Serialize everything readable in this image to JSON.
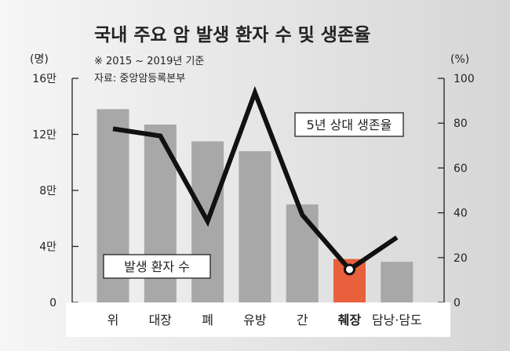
{
  "chart_data": {
    "type": "bar",
    "title": "국내 주요 암 발생 환자 수 및 생존율",
    "subtitle_period": "※ 2015 ~ 2019년 기준",
    "subtitle_source": "자료: 중앙암등록본부",
    "left_axis": {
      "unit": "(명)",
      "ylim": [
        0,
        160000
      ],
      "ticks": [
        {
          "value": 0,
          "label": "0"
        },
        {
          "value": 40000,
          "label": "4만"
        },
        {
          "value": 80000,
          "label": "8만"
        },
        {
          "value": 120000,
          "label": "12만"
        },
        {
          "value": 160000,
          "label": "16만"
        }
      ]
    },
    "right_axis": {
      "unit": "(%)",
      "ylim": [
        0,
        100
      ],
      "ticks": [
        {
          "value": 0,
          "label": "0"
        },
        {
          "value": 20,
          "label": "20"
        },
        {
          "value": 40,
          "label": "40"
        },
        {
          "value": 60,
          "label": "60"
        },
        {
          "value": 80,
          "label": "80"
        },
        {
          "value": 100,
          "label": "100"
        }
      ]
    },
    "categories": [
      "위",
      "대장",
      "폐",
      "유방",
      "간",
      "췌장",
      "담낭·담도"
    ],
    "highlight_category": "췌장",
    "series": [
      {
        "name": "발생 환자 수",
        "type": "bar",
        "axis": "left",
        "values": [
          138000,
          127000,
          115000,
          108000,
          70000,
          31000,
          29000
        ]
      },
      {
        "name": "5년 상대 생존율",
        "type": "line",
        "axis": "right",
        "values": [
          77.5,
          74.3,
          36.2,
          93.6,
          39.1,
          14.7,
          29.0
        ]
      }
    ],
    "colors": {
      "background_gradient_start": "#f6f6f6",
      "background_gradient_end": "#d6d6d6",
      "bar": "#a8a8a8",
      "bar_highlight": "#e8603c",
      "line": "#111111",
      "marker_fill": "#ffffff",
      "axis": "#222222",
      "text": "#222222",
      "label_box": "#ffffff"
    }
  }
}
